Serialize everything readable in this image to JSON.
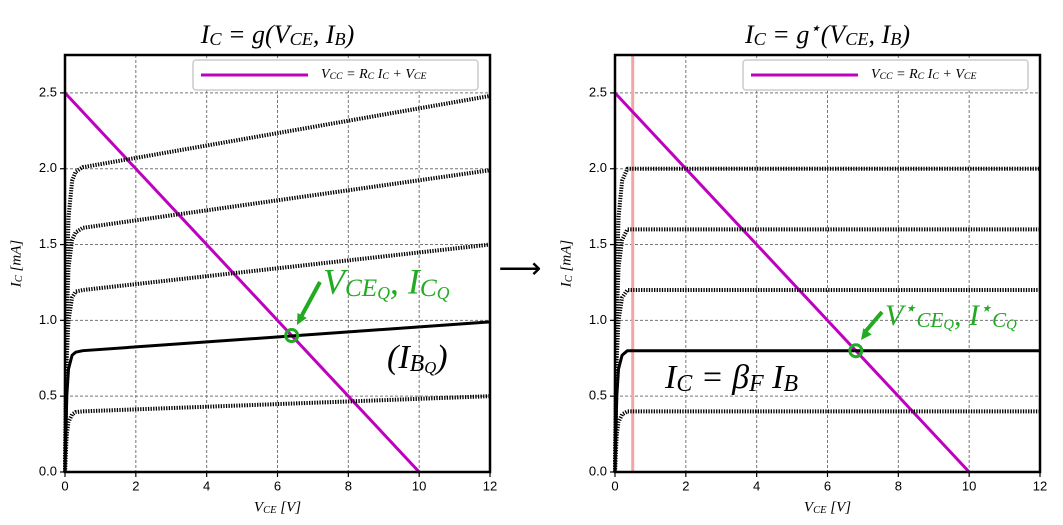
{
  "separator": "⟶",
  "chart_data": [
    {
      "type": "line",
      "title": "I_C = g(V_{CE}, I_B)",
      "xlabel": "V_{CE} [V]",
      "ylabel": "I_C [mA]",
      "xlim": [
        0,
        12
      ],
      "ylim": [
        0,
        2.75
      ],
      "xticks": [
        0,
        2,
        4,
        6,
        8,
        10,
        12
      ],
      "yticks": [
        {
          "value": 0,
          "label": "0.0"
        },
        0.5,
        {
          "value": 1,
          "label": "1.0"
        },
        1.5,
        {
          "value": 2,
          "label": "2.0"
        },
        2.5
      ],
      "grid": true,
      "legend": "upper right",
      "series": [
        {
          "name": "V_{CC} = R_C I_C + V_{CE}",
          "color": "#bf00bf",
          "style": "solid",
          "x": [
            0,
            10
          ],
          "values": [
            2.5,
            0
          ]
        },
        {
          "color": "#000000",
          "style": "dotted",
          "x": [
            0,
            0.05,
            0.1,
            0.2,
            0.3,
            0.5,
            12
          ],
          "values": [
            0,
            0.25,
            0.33,
            0.38,
            0.395,
            0.4,
            0.5
          ]
        },
        {
          "color": "#000000",
          "style": "solid",
          "x": [
            0,
            0.05,
            0.1,
            0.2,
            0.3,
            0.5,
            12
          ],
          "values": [
            0,
            0.5,
            0.68,
            0.77,
            0.79,
            0.8,
            0.99
          ]
        },
        {
          "color": "#000000",
          "style": "dotted",
          "x": [
            0,
            0.05,
            0.1,
            0.2,
            0.3,
            0.5,
            12
          ],
          "values": [
            0,
            0.75,
            1.0,
            1.15,
            1.19,
            1.2,
            1.5
          ]
        },
        {
          "color": "#000000",
          "style": "dotted",
          "x": [
            0,
            0.05,
            0.1,
            0.2,
            0.3,
            0.5,
            12
          ],
          "values": [
            0,
            1.0,
            1.35,
            1.53,
            1.58,
            1.61,
            1.99
          ]
        },
        {
          "color": "#000000",
          "style": "dotted",
          "x": [
            0,
            0.05,
            0.1,
            0.2,
            0.3,
            0.5,
            12
          ],
          "values": [
            0,
            1.25,
            1.68,
            1.92,
            1.98,
            2.01,
            2.48
          ]
        },
        {
          "color": "#22aa22",
          "marker": "circle",
          "x": [
            6.4
          ],
          "values": [
            0.9
          ]
        }
      ],
      "annotations": [
        {
          "text": "V_{CE_Q}, I_{C_Q}",
          "color": "#22aa22"
        },
        {
          "text": "(I_{B_Q})",
          "color": "#000000"
        }
      ]
    },
    {
      "type": "line",
      "title": "I_C = g^⋆(V_{CE}, I_B)",
      "xlabel": "V_{CE} [V]",
      "ylabel": "I_C [mA]",
      "xlim": [
        0,
        12
      ],
      "ylim": [
        0,
        2.75
      ],
      "xticks": [
        0,
        2,
        4,
        6,
        8,
        10,
        12
      ],
      "yticks": [
        {
          "value": 0,
          "label": "0.0"
        },
        0.5,
        {
          "value": 1,
          "label": "1.0"
        },
        1.5,
        {
          "value": 2,
          "label": "2.0"
        },
        2.5
      ],
      "grid": true,
      "legend": "upper right",
      "series": [
        {
          "color": "#f4a6a6",
          "style": "solid",
          "x": [
            0.5,
            0.5
          ],
          "values": [
            0,
            2.75
          ]
        },
        {
          "name": "V_{CC} = R_C I_C + V_{CE}",
          "color": "#bf00bf",
          "style": "solid",
          "x": [
            0,
            10
          ],
          "values": [
            2.5,
            0
          ]
        },
        {
          "color": "#000000",
          "style": "dotted",
          "x": [
            0,
            0.05,
            0.1,
            0.2,
            0.35,
            12
          ],
          "values": [
            0,
            0.25,
            0.33,
            0.38,
            0.4,
            0.4
          ]
        },
        {
          "color": "#000000",
          "style": "solid",
          "x": [
            0,
            0.05,
            0.1,
            0.2,
            0.35,
            12
          ],
          "values": [
            0,
            0.5,
            0.68,
            0.77,
            0.8,
            0.8
          ]
        },
        {
          "color": "#000000",
          "style": "dotted",
          "x": [
            0,
            0.05,
            0.1,
            0.2,
            0.35,
            12
          ],
          "values": [
            0,
            0.75,
            1.0,
            1.15,
            1.2,
            1.2
          ]
        },
        {
          "color": "#000000",
          "style": "dotted",
          "x": [
            0,
            0.05,
            0.1,
            0.2,
            0.35,
            12
          ],
          "values": [
            0,
            1.0,
            1.35,
            1.53,
            1.6,
            1.6
          ]
        },
        {
          "color": "#000000",
          "style": "dotted",
          "x": [
            0,
            0.05,
            0.1,
            0.2,
            0.35,
            12
          ],
          "values": [
            0,
            1.25,
            1.68,
            1.92,
            2.0,
            2.0
          ]
        },
        {
          "color": "#22aa22",
          "marker": "circle",
          "x": [
            6.8
          ],
          "values": [
            0.8
          ]
        }
      ],
      "annotations": [
        {
          "text": "V^⋆_{CE_Q}, I^⋆_{C_Q}",
          "color": "#22aa22"
        },
        {
          "text": "I_C = β_F I_B",
          "color": "#000000"
        }
      ]
    }
  ]
}
